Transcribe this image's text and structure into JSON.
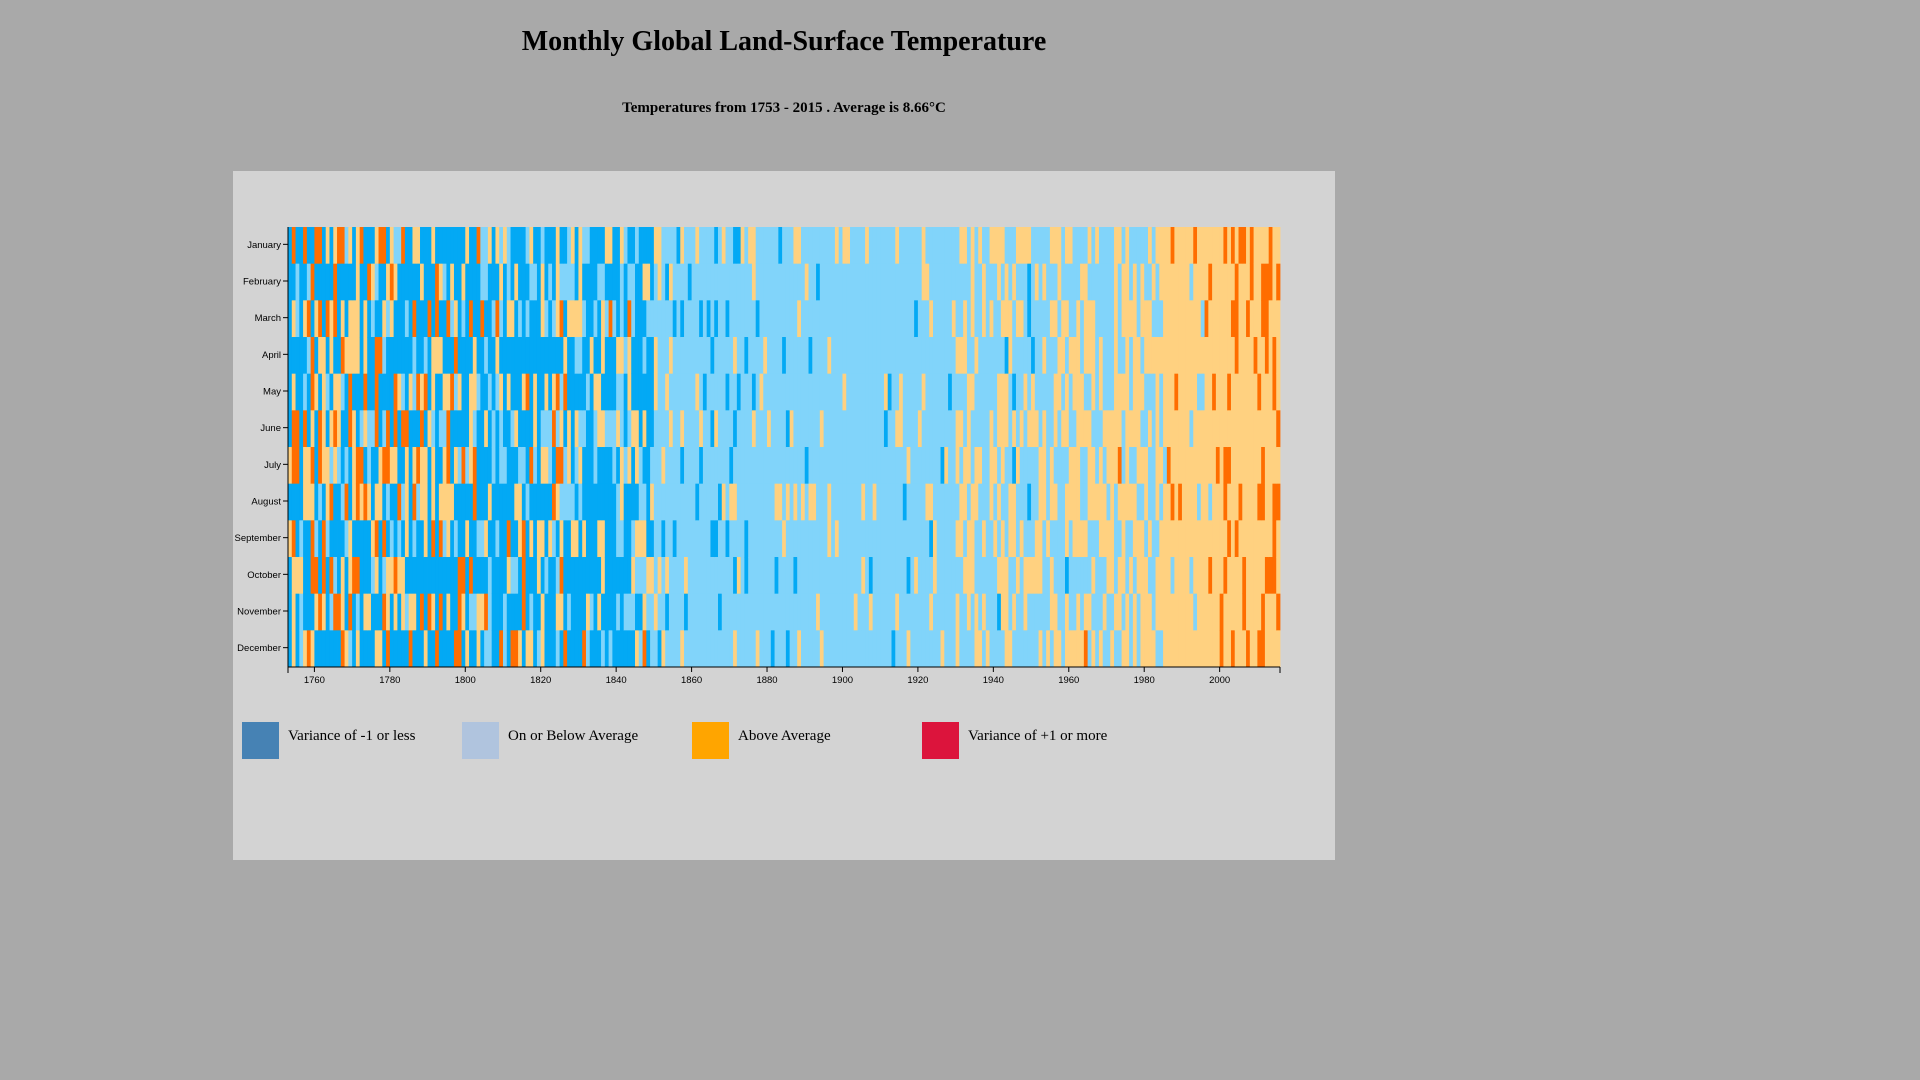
{
  "chart_data": {
    "type": "heatmap",
    "title": "Monthly Global Land-Surface Temperature",
    "subtitle": "Temperatures from 1753 - 2015 . Average is 8.66°C",
    "x_start": 1753,
    "x_end": 2015,
    "xlim": [
      1753,
      2016
    ],
    "x_ticks": [
      1760,
      1780,
      1800,
      1820,
      1840,
      1860,
      1880,
      1900,
      1920,
      1940,
      1960,
      1980,
      2000
    ],
    "months": [
      "January",
      "February",
      "March",
      "April",
      "May",
      "June",
      "July",
      "August",
      "September",
      "October",
      "November",
      "December"
    ],
    "base_temperature": 8.66,
    "categories": [
      {
        "id": "low",
        "name": "Variance of -1 or less",
        "legend_color": "#4682b4",
        "cell_color": "#03a9f4"
      },
      {
        "id": "below",
        "name": "On or Below Average",
        "legend_color": "#b0c4de",
        "cell_color": "#81d4fa"
      },
      {
        "id": "above",
        "name": "Above Average",
        "legend_color": "#ffa500",
        "cell_color": "#ffd180"
      },
      {
        "id": "high",
        "name": "Variance of +1 or more",
        "legend_color": "#dc143c",
        "cell_color": "#ff6d00"
      }
    ],
    "era_probabilities": [
      {
        "from": 1753,
        "to": 1800,
        "p": [
          0.52,
          0.1,
          0.23,
          0.15
        ]
      },
      {
        "from": 1800,
        "to": 1830,
        "p": [
          0.58,
          0.2,
          0.17,
          0.05
        ]
      },
      {
        "from": 1830,
        "to": 1850,
        "p": [
          0.5,
          0.32,
          0.16,
          0.02
        ]
      },
      {
        "from": 1850,
        "to": 1875,
        "p": [
          0.12,
          0.78,
          0.1,
          0.0
        ]
      },
      {
        "from": 1875,
        "to": 1930,
        "p": [
          0.04,
          0.86,
          0.1,
          0.0
        ]
      },
      {
        "from": 1930,
        "to": 1960,
        "p": [
          0.02,
          0.58,
          0.4,
          0.0
        ]
      },
      {
        "from": 1960,
        "to": 1985,
        "p": [
          0.0,
          0.45,
          0.54,
          0.01
        ]
      },
      {
        "from": 1985,
        "to": 2000,
        "p": [
          0.0,
          0.1,
          0.87,
          0.03
        ]
      },
      {
        "from": 2000,
        "to": 2016,
        "p": [
          0.0,
          0.0,
          0.7,
          0.3
        ]
      }
    ],
    "grid": false,
    "legend_position": "bottom"
  },
  "colors": {
    "page_background": "#a9a9a9",
    "panel_background": "#d3d3d3"
  }
}
